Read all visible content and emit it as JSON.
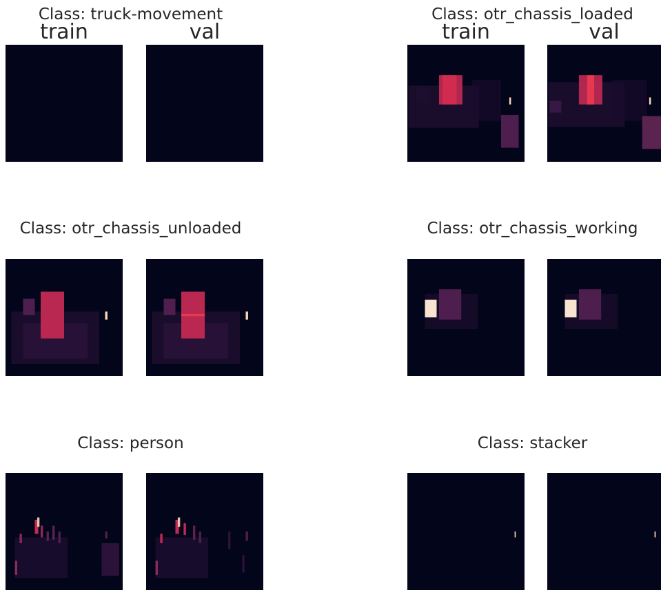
{
  "colors": {
    "background": "#03051a",
    "dark_purple": "#3b1a48",
    "mid_purple": "#4e1f4e",
    "crimson": "#c22a53",
    "red": "#e8384f",
    "cream": "#f8e2d0",
    "pale_peach": "#fbd6b8"
  },
  "chart_data": [
    {
      "type": "heatmap",
      "title": "Class: truck-movement",
      "columns": [
        "train",
        "val"
      ],
      "panels": [
        {
          "name": "train",
          "blobs": []
        },
        {
          "name": "val",
          "blobs": []
        }
      ]
    },
    {
      "type": "heatmap",
      "title": "Class: otr_chassis_loaded",
      "columns": [
        "train",
        "val"
      ],
      "panels": [
        {
          "name": "train",
          "blobs": [
            {
              "x": 0.01,
              "y": 0.35,
              "w": 0.6,
              "h": 0.36,
              "color": "#2a1238",
              "opacity": 0.6
            },
            {
              "x": 0.55,
              "y": 0.3,
              "w": 0.25,
              "h": 0.35,
              "color": "#1a0c2c",
              "opacity": 0.7
            },
            {
              "x": 0.08,
              "y": 0.35,
              "w": 0.1,
              "h": 0.15,
              "color": "#1d0e30",
              "opacity": 0.9
            },
            {
              "x": 0.27,
              "y": 0.26,
              "w": 0.2,
              "h": 0.25,
              "color": "#c22a53",
              "opacity": 0.9
            },
            {
              "x": 0.3,
              "y": 0.26,
              "w": 0.12,
              "h": 0.25,
              "color": "#d52e50",
              "opacity": 0.9
            },
            {
              "x": 0.8,
              "y": 0.6,
              "w": 0.15,
              "h": 0.28,
              "color": "#4e1f4e",
              "opacity": 1
            },
            {
              "x": 0.87,
              "y": 0.45,
              "w": 0.015,
              "h": 0.06,
              "color": "#fbd6b8",
              "opacity": 1
            }
          ]
        },
        {
          "name": "val",
          "blobs": [
            {
              "x": 0.01,
              "y": 0.32,
              "w": 0.65,
              "h": 0.38,
              "color": "#2a1238",
              "opacity": 0.6
            },
            {
              "x": 0.55,
              "y": 0.3,
              "w": 0.3,
              "h": 0.35,
              "color": "#1a0c2c",
              "opacity": 0.7
            },
            {
              "x": 0.02,
              "y": 0.48,
              "w": 0.1,
              "h": 0.1,
              "color": "#3b1a48",
              "opacity": 0.9
            },
            {
              "x": 0.27,
              "y": 0.26,
              "w": 0.2,
              "h": 0.25,
              "color": "#c22a53",
              "opacity": 0.9
            },
            {
              "x": 0.34,
              "y": 0.26,
              "w": 0.06,
              "h": 0.25,
              "color": "#e8384f",
              "opacity": 1
            },
            {
              "x": 0.81,
              "y": 0.61,
              "w": 0.16,
              "h": 0.28,
              "color": "#5a2350",
              "opacity": 1
            },
            {
              "x": 0.87,
              "y": 0.45,
              "w": 0.015,
              "h": 0.06,
              "color": "#fbd6b8",
              "opacity": 1
            }
          ]
        }
      ]
    },
    {
      "type": "heatmap",
      "title": "Class: otr_chassis_unloaded",
      "columns": [
        "train",
        "val"
      ],
      "panels": [
        {
          "name": "train",
          "blobs": [
            {
              "x": 0.05,
              "y": 0.45,
              "w": 0.75,
              "h": 0.45,
              "color": "#2a1238",
              "opacity": 0.6
            },
            {
              "x": 0.15,
              "y": 0.55,
              "w": 0.55,
              "h": 0.3,
              "color": "#35163f",
              "opacity": 0.5
            },
            {
              "x": 0.15,
              "y": 0.34,
              "w": 0.1,
              "h": 0.14,
              "color": "#4e1f4e",
              "opacity": 1
            },
            {
              "x": 0.3,
              "y": 0.28,
              "w": 0.2,
              "h": 0.4,
              "color": "#c22a53",
              "opacity": 0.95
            },
            {
              "x": 0.85,
              "y": 0.45,
              "w": 0.02,
              "h": 0.07,
              "color": "#fbd6b8",
              "opacity": 1
            }
          ]
        },
        {
          "name": "val",
          "blobs": [
            {
              "x": 0.05,
              "y": 0.45,
              "w": 0.75,
              "h": 0.45,
              "color": "#2a1238",
              "opacity": 0.6
            },
            {
              "x": 0.15,
              "y": 0.55,
              "w": 0.55,
              "h": 0.3,
              "color": "#35163f",
              "opacity": 0.5
            },
            {
              "x": 0.15,
              "y": 0.34,
              "w": 0.1,
              "h": 0.14,
              "color": "#4e1f4e",
              "opacity": 1
            },
            {
              "x": 0.3,
              "y": 0.28,
              "w": 0.2,
              "h": 0.4,
              "color": "#c22a53",
              "opacity": 0.95
            },
            {
              "x": 0.3,
              "y": 0.47,
              "w": 0.2,
              "h": 0.02,
              "color": "#e8384f",
              "opacity": 1
            },
            {
              "x": 0.85,
              "y": 0.45,
              "w": 0.02,
              "h": 0.07,
              "color": "#fbd6b8",
              "opacity": 1
            }
          ]
        }
      ]
    },
    {
      "type": "heatmap",
      "title": "Class: otr_chassis_working",
      "columns": [
        "train",
        "val"
      ],
      "panels": [
        {
          "name": "train",
          "blobs": [
            {
              "x": 0.15,
              "y": 0.3,
              "w": 0.45,
              "h": 0.3,
              "color": "#1a0c2c",
              "opacity": 0.8
            },
            {
              "x": 0.27,
              "y": 0.26,
              "w": 0.19,
              "h": 0.26,
              "color": "#4e1f4e",
              "opacity": 1
            },
            {
              "x": 0.15,
              "y": 0.35,
              "w": 0.1,
              "h": 0.15,
              "color": "#f8e2d0",
              "opacity": 1
            }
          ]
        },
        {
          "name": "val",
          "blobs": [
            {
              "x": 0.15,
              "y": 0.3,
              "w": 0.45,
              "h": 0.3,
              "color": "#1a0c2c",
              "opacity": 0.8
            },
            {
              "x": 0.27,
              "y": 0.26,
              "w": 0.19,
              "h": 0.26,
              "color": "#4e1f4e",
              "opacity": 1
            },
            {
              "x": 0.15,
              "y": 0.35,
              "w": 0.1,
              "h": 0.15,
              "color": "#f8e2d0",
              "opacity": 1
            }
          ]
        }
      ]
    },
    {
      "type": "heatmap",
      "title": "Class: person",
      "columns": [
        "train",
        "val"
      ],
      "panels": [
        {
          "name": "train",
          "blobs": [
            {
              "x": 0.08,
              "y": 0.55,
              "w": 0.45,
              "h": 0.35,
              "color": "#1d0e30",
              "opacity": 0.8
            },
            {
              "x": 0.82,
              "y": 0.6,
              "w": 0.15,
              "h": 0.28,
              "color": "#2a1238",
              "opacity": 1
            },
            {
              "x": 0.25,
              "y": 0.4,
              "w": 0.03,
              "h": 0.12,
              "color": "#c22a53",
              "opacity": 1
            },
            {
              "x": 0.27,
              "y": 0.38,
              "w": 0.02,
              "h": 0.08,
              "color": "#fbd6b8",
              "opacity": 0.9
            },
            {
              "x": 0.3,
              "y": 0.45,
              "w": 0.02,
              "h": 0.1,
              "color": "#8a2a5a",
              "opacity": 1
            },
            {
              "x": 0.12,
              "y": 0.52,
              "w": 0.02,
              "h": 0.08,
              "color": "#8a2a5a",
              "opacity": 1
            },
            {
              "x": 0.08,
              "y": 0.75,
              "w": 0.02,
              "h": 0.12,
              "color": "#8a2a5a",
              "opacity": 1
            },
            {
              "x": 0.35,
              "y": 0.5,
              "w": 0.02,
              "h": 0.08,
              "color": "#5a2350",
              "opacity": 1
            },
            {
              "x": 0.4,
              "y": 0.45,
              "w": 0.02,
              "h": 0.12,
              "color": "#5a2350",
              "opacity": 1
            },
            {
              "x": 0.45,
              "y": 0.5,
              "w": 0.02,
              "h": 0.1,
              "color": "#4e1f4e",
              "opacity": 1
            },
            {
              "x": 0.85,
              "y": 0.5,
              "w": 0.02,
              "h": 0.06,
              "color": "#4e1f4e",
              "opacity": 1
            }
          ]
        },
        {
          "name": "val",
          "blobs": [
            {
              "x": 0.08,
              "y": 0.55,
              "w": 0.45,
              "h": 0.35,
              "color": "#1d0e30",
              "opacity": 0.8
            },
            {
              "x": 0.25,
              "y": 0.4,
              "w": 0.03,
              "h": 0.12,
              "color": "#c22a53",
              "opacity": 1
            },
            {
              "x": 0.27,
              "y": 0.38,
              "w": 0.02,
              "h": 0.08,
              "color": "#fbd6b8",
              "opacity": 0.9
            },
            {
              "x": 0.32,
              "y": 0.43,
              "w": 0.02,
              "h": 0.1,
              "color": "#c22a53",
              "opacity": 1
            },
            {
              "x": 0.12,
              "y": 0.52,
              "w": 0.02,
              "h": 0.08,
              "color": "#c22a53",
              "opacity": 1
            },
            {
              "x": 0.08,
              "y": 0.75,
              "w": 0.02,
              "h": 0.12,
              "color": "#8a2a5a",
              "opacity": 1
            },
            {
              "x": 0.4,
              "y": 0.45,
              "w": 0.02,
              "h": 0.12,
              "color": "#5a2350",
              "opacity": 1
            },
            {
              "x": 0.45,
              "y": 0.5,
              "w": 0.02,
              "h": 0.1,
              "color": "#4e1f4e",
              "opacity": 1
            },
            {
              "x": 0.7,
              "y": 0.5,
              "w": 0.02,
              "h": 0.15,
              "color": "#2a1238",
              "opacity": 1
            },
            {
              "x": 0.85,
              "y": 0.5,
              "w": 0.02,
              "h": 0.08,
              "color": "#4e1f4e",
              "opacity": 1
            },
            {
              "x": 0.82,
              "y": 0.7,
              "w": 0.02,
              "h": 0.15,
              "color": "#2a1238",
              "opacity": 1
            }
          ]
        }
      ]
    },
    {
      "type": "heatmap",
      "title": "Class: stacker",
      "columns": [
        "train",
        "val"
      ],
      "panels": [
        {
          "name": "train",
          "blobs": [
            {
              "x": 0.915,
              "y": 0.5,
              "w": 0.01,
              "h": 0.05,
              "color": "#fbd6b8",
              "opacity": 1
            }
          ]
        },
        {
          "name": "val",
          "blobs": [
            {
              "x": 0.915,
              "y": 0.5,
              "w": 0.01,
              "h": 0.05,
              "color": "#fbd6b8",
              "opacity": 1
            }
          ]
        }
      ]
    }
  ]
}
